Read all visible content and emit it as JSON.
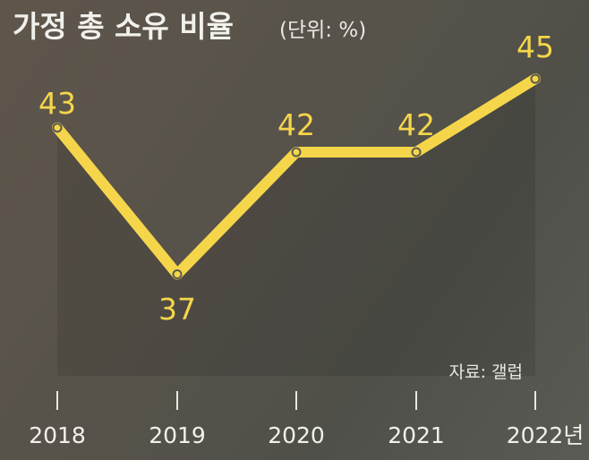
{
  "chart_data": {
    "type": "line",
    "title": "가정 총 소유 비율",
    "unit_note": "(단위: %)",
    "categories": [
      "2018",
      "2019",
      "2020",
      "2021",
      "2022년"
    ],
    "series": [
      {
        "values": [
          43,
          37,
          42,
          42,
          45
        ]
      }
    ],
    "data_labels": [
      "43",
      "37",
      "42",
      "42",
      "45"
    ],
    "source": "자료: 갤럽",
    "colors": {
      "line": "#f5d64a",
      "label": "#f5d64a",
      "marker_stroke": "#5a5a50"
    },
    "grid": false
  }
}
